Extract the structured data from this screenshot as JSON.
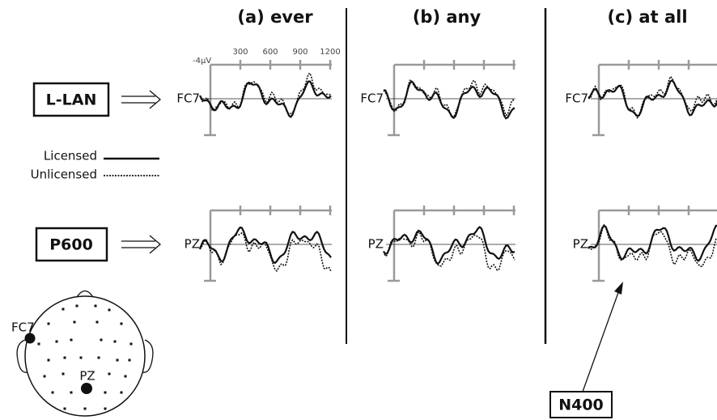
{
  "panels": [
    {
      "title": "(a) ever",
      "rows": [
        "FC7",
        "PZ"
      ]
    },
    {
      "title": "(b) any",
      "rows": [
        "FC7",
        "PZ"
      ]
    },
    {
      "title": "(c) at all",
      "rows": [
        "FC7",
        "PZ"
      ]
    }
  ],
  "amplitude_label": "-4μV",
  "time_ticks": [
    "300",
    "600",
    "900",
    "1200"
  ],
  "conditions": [
    "L-LAN",
    "P600"
  ],
  "legend": [
    "Licensed",
    "Unlicensed"
  ],
  "annotation": "N400",
  "scalp": {
    "electrodes": [
      "FC7",
      "PZ"
    ]
  }
}
